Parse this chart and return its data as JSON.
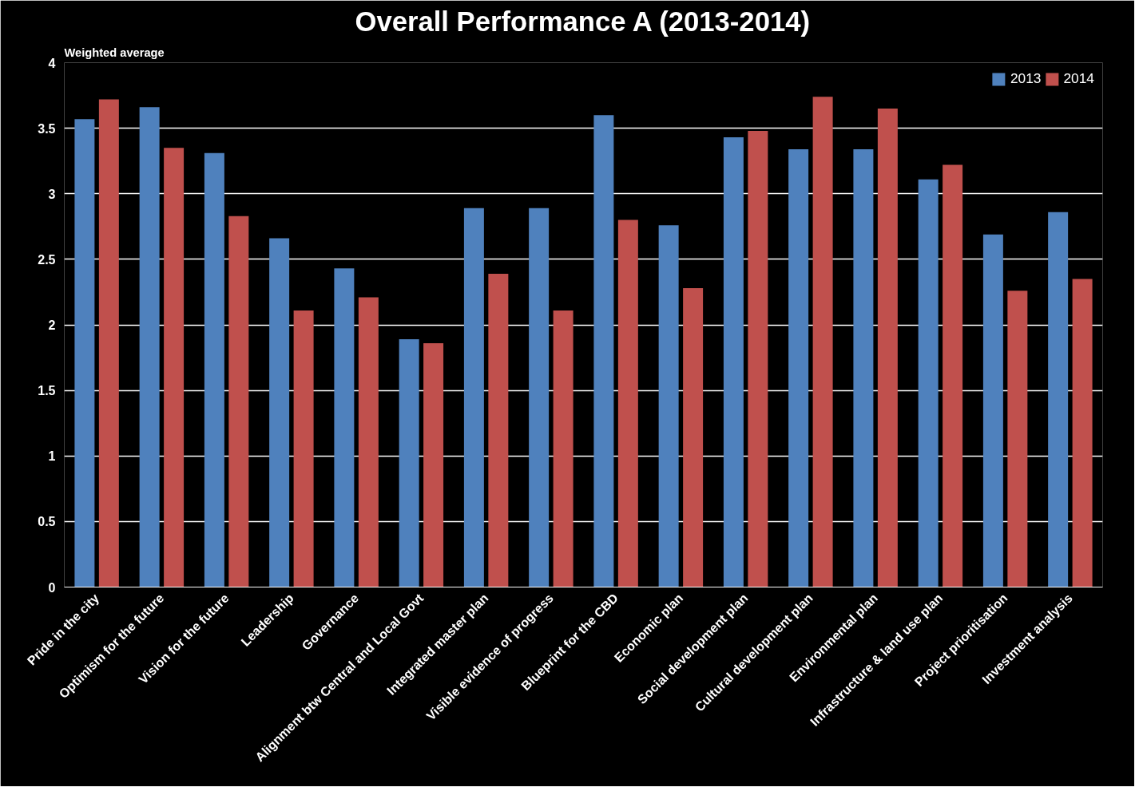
{
  "chart_data": {
    "type": "bar",
    "title": "Overall Performance A (2013-2014)",
    "ylabel": "Weighted average",
    "categories": [
      "Pride in the city",
      "Optimism for the future",
      "Vision for the future",
      "Leadership",
      "Governance",
      "Alignment btw Central and Local Govt",
      "Integrated master plan",
      "Visible evidence of progress",
      "Blueprint for the CBD",
      "Economic plan",
      "Social development plan",
      "Cultural development plan",
      "Environmental plan",
      "Infrastructure & land use plan",
      "Project prioritisation",
      "Investment analysis"
    ],
    "series": [
      {
        "name": "2013",
        "color": "#4f81bd",
        "values": [
          3.57,
          3.66,
          3.31,
          2.66,
          2.43,
          1.89,
          2.89,
          2.89,
          3.6,
          2.76,
          3.43,
          3.34,
          3.34,
          3.11,
          2.69,
          2.86
        ]
      },
      {
        "name": "2014",
        "color": "#c0504d",
        "values": [
          3.72,
          3.35,
          2.83,
          2.11,
          2.21,
          1.86,
          2.39,
          2.11,
          2.8,
          2.28,
          3.48,
          3.74,
          3.65,
          3.22,
          2.26,
          2.35
        ]
      }
    ],
    "ylim": [
      0,
      4
    ],
    "yticks": [
      0,
      0.5,
      1,
      1.5,
      2,
      2.5,
      3,
      3.5,
      4
    ],
    "grid": "y",
    "legend": "top right"
  }
}
